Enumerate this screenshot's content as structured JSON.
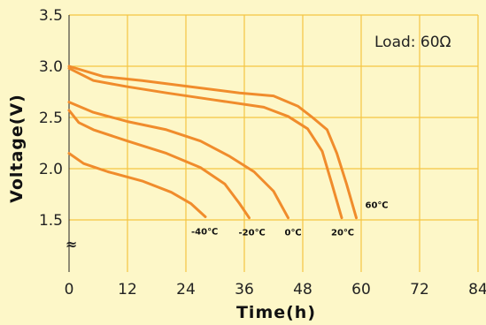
{
  "chart_data": {
    "type": "line",
    "xlabel": "Time(h)",
    "ylabel": "Voltage(V)",
    "annotation": "Load: 60Ω",
    "axis_break_symbol": "≈",
    "xlim": [
      0,
      84
    ],
    "ylim": [
      1.5,
      3.5
    ],
    "xticks": [
      "0",
      "12",
      "24",
      "36",
      "48",
      "60",
      "72",
      "84"
    ],
    "yticks": [
      "1.5",
      "2.0",
      "2.5",
      "3.0",
      "3.5"
    ],
    "grid": true,
    "colors": {
      "background": "#fdf7c8",
      "grid": "#f5c542",
      "line": "#f08c2c",
      "axis": "#222222"
    },
    "series": [
      {
        "name": "-40℃",
        "points": [
          [
            0,
            2.15
          ],
          [
            3,
            2.05
          ],
          [
            8,
            1.97
          ],
          [
            15,
            1.88
          ],
          [
            21,
            1.77
          ],
          [
            25,
            1.66
          ],
          [
            28,
            1.53
          ]
        ]
      },
      {
        "name": "-20℃",
        "points": [
          [
            0,
            2.57
          ],
          [
            2,
            2.45
          ],
          [
            5,
            2.38
          ],
          [
            12,
            2.27
          ],
          [
            20,
            2.15
          ],
          [
            27,
            2.01
          ],
          [
            32,
            1.85
          ],
          [
            35,
            1.66
          ],
          [
            37,
            1.52
          ]
        ]
      },
      {
        "name": "0℃",
        "points": [
          [
            0,
            2.65
          ],
          [
            5,
            2.55
          ],
          [
            12,
            2.46
          ],
          [
            20,
            2.38
          ],
          [
            27,
            2.27
          ],
          [
            33,
            2.12
          ],
          [
            38,
            1.97
          ],
          [
            42,
            1.78
          ],
          [
            45,
            1.52
          ]
        ]
      },
      {
        "name": "20℃",
        "points": [
          [
            0,
            2.98
          ],
          [
            5,
            2.86
          ],
          [
            12,
            2.8
          ],
          [
            20,
            2.74
          ],
          [
            30,
            2.67
          ],
          [
            40,
            2.6
          ],
          [
            45,
            2.51
          ],
          [
            49,
            2.39
          ],
          [
            52,
            2.17
          ],
          [
            54,
            1.85
          ],
          [
            56,
            1.52
          ]
        ]
      },
      {
        "name": "60℃",
        "points": [
          [
            0,
            3.0
          ],
          [
            7,
            2.9
          ],
          [
            15,
            2.86
          ],
          [
            25,
            2.8
          ],
          [
            35,
            2.74
          ],
          [
            42,
            2.71
          ],
          [
            47,
            2.61
          ],
          [
            50,
            2.5
          ],
          [
            53,
            2.38
          ],
          [
            55,
            2.15
          ],
          [
            57,
            1.85
          ],
          [
            59,
            1.52
          ]
        ]
      }
    ]
  }
}
